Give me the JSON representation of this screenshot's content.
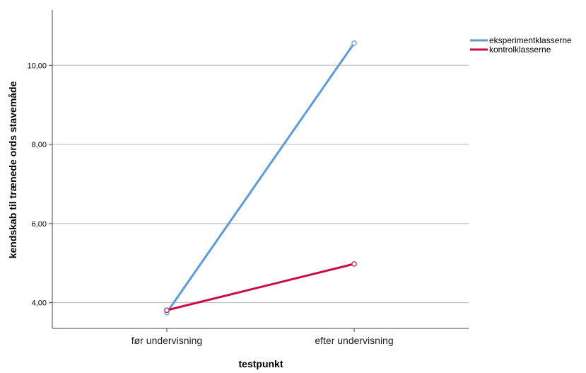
{
  "chart_data": {
    "type": "line",
    "title": "",
    "xlabel": "testpunkt",
    "ylabel": "kendskab til trænede ords stavemåde",
    "categories": [
      "før undervisning",
      "efter undervisning"
    ],
    "ylim": [
      3.35,
      11.4
    ],
    "yticks": [
      4,
      6,
      8,
      10
    ],
    "ytick_labels": [
      "4,00",
      "6,00",
      "8,00",
      "10,00"
    ],
    "grid": "horizontal",
    "legend_position": "top-right",
    "series": [
      {
        "name": "eksperimentklasserne",
        "color": "#5b9bdf",
        "values": [
          3.75,
          10.56
        ]
      },
      {
        "name": "kontrolklasserne",
        "color": "#cc0c3e",
        "values": [
          3.81,
          4.98
        ]
      }
    ]
  }
}
